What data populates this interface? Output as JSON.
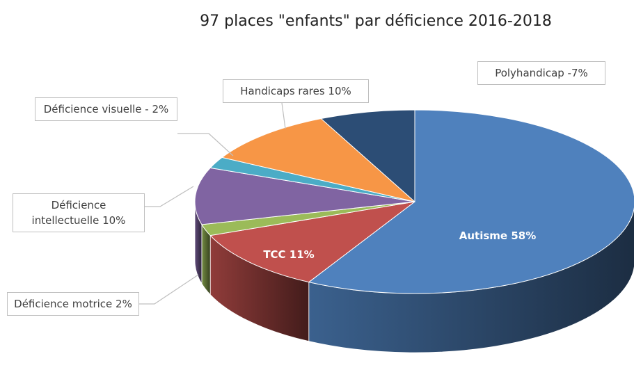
{
  "chart_data": {
    "type": "pie3d",
    "title": "97 places \"enfants\" par déficience 2016-2018",
    "values": [
      58,
      11,
      2,
      10,
      2,
      10,
      7
    ],
    "value_labels": [
      "Autisme  58%",
      "TCC 11%",
      "Déficience motrice 2%",
      "Déficience intellectuelle 10%",
      "Déficience visuelle - 2%",
      "Handicaps rares 10%",
      "Polyhandicap -7%"
    ],
    "colors": [
      "#4f81bd",
      "#c0504d",
      "#9bbb59",
      "#8064a2",
      "#4bacc6",
      "#f79646",
      "#2c4d75"
    ]
  }
}
